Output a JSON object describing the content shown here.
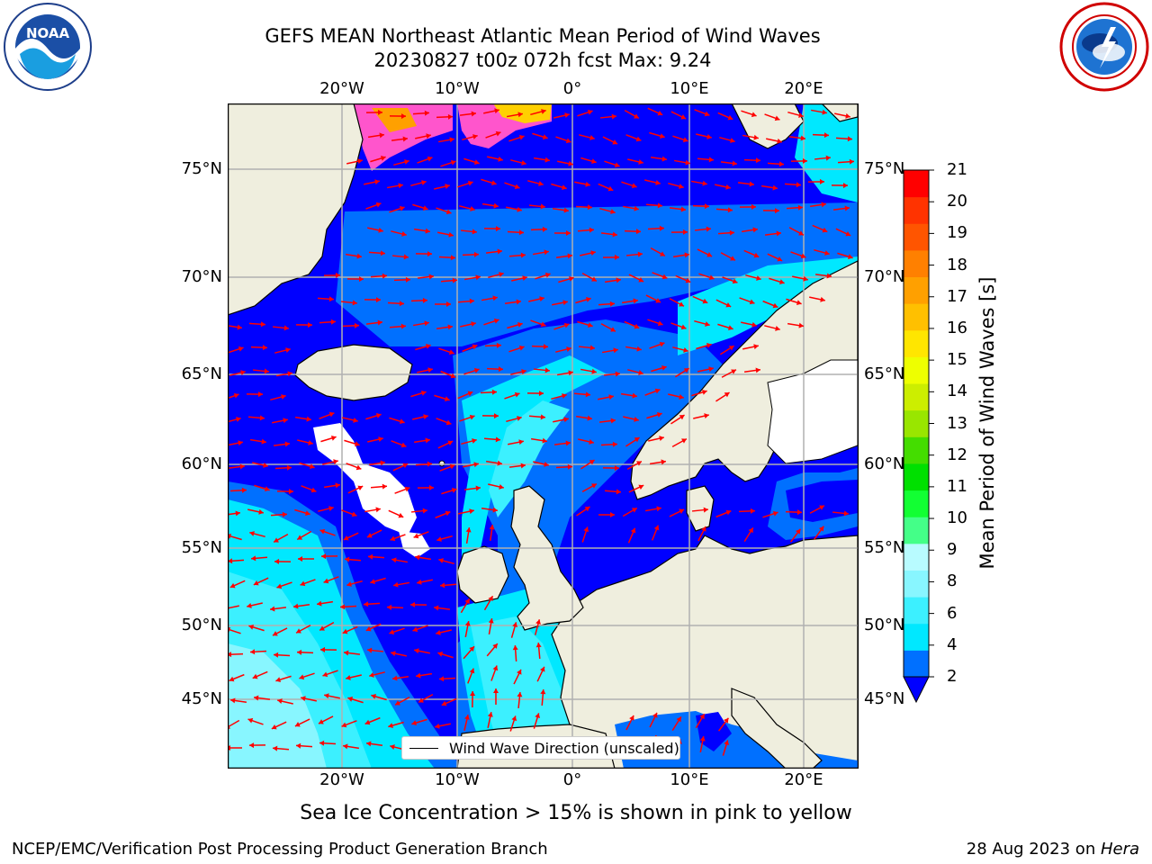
{
  "title": {
    "line1": "GEFS MEAN Northeast Atlantic Mean Period of Wind Waves",
    "line2": "20230827 t00z 072h fcst   Max: 9.24"
  },
  "logos": {
    "left": {
      "name": "noaa-logo",
      "text": "NOAA",
      "ring_text": "NATIONAL OCEANIC AND ATMOSPHERIC ADMINISTRATION · U.S. DEPARTMENT OF COMMERCE"
    },
    "right": {
      "name": "nws-logo",
      "ring_text": "NATIONAL WEATHER SERVICE"
    }
  },
  "map": {
    "lon_labels": [
      "20°W",
      "10°W",
      "0°",
      "10°E",
      "20°E"
    ],
    "lat_labels": [
      "75°N",
      "70°N",
      "65°N",
      "60°N",
      "55°N",
      "50°N",
      "45°N"
    ],
    "lon_range": [
      -30,
      25
    ],
    "lat_range": [
      41,
      78
    ],
    "colors": {
      "land": "#efeede",
      "ice_free": "#ffffff",
      "coast": "#000000",
      "grid": "#b0b0b0",
      "arrow": "#ff0000"
    },
    "legend_label": "Wind Wave Direction (unscaled)"
  },
  "colorbar": {
    "title": "Mean Period of Wind Waves [s]",
    "ticks": [
      "21",
      "20",
      "19",
      "18",
      "17",
      "16",
      "15",
      "14",
      "13",
      "12",
      "11",
      "10",
      "9",
      "8",
      "6",
      "4",
      "2"
    ],
    "colors_bottom_to_top": [
      "#0070ff",
      "#00e8ff",
      "#3cf0ff",
      "#88f6ff",
      "#b8fbff",
      "#44ff88",
      "#12ff33",
      "#00e000",
      "#44dd00",
      "#99e600",
      "#ccee00",
      "#eeff00",
      "#ffe600",
      "#ffc000",
      "#ffa000",
      "#ff8000",
      "#ff5500",
      "#ff3300",
      "#ff0000"
    ],
    "extend_color": "#0000ff"
  },
  "subnote": "Sea Ice Concentration > 15% is shown in pink to yellow",
  "footer": {
    "left": "NCEP/EMC/Verification Post Processing Product Generation Branch",
    "right_date": "28 Aug 2023 on ",
    "right_machine": "Hera"
  }
}
